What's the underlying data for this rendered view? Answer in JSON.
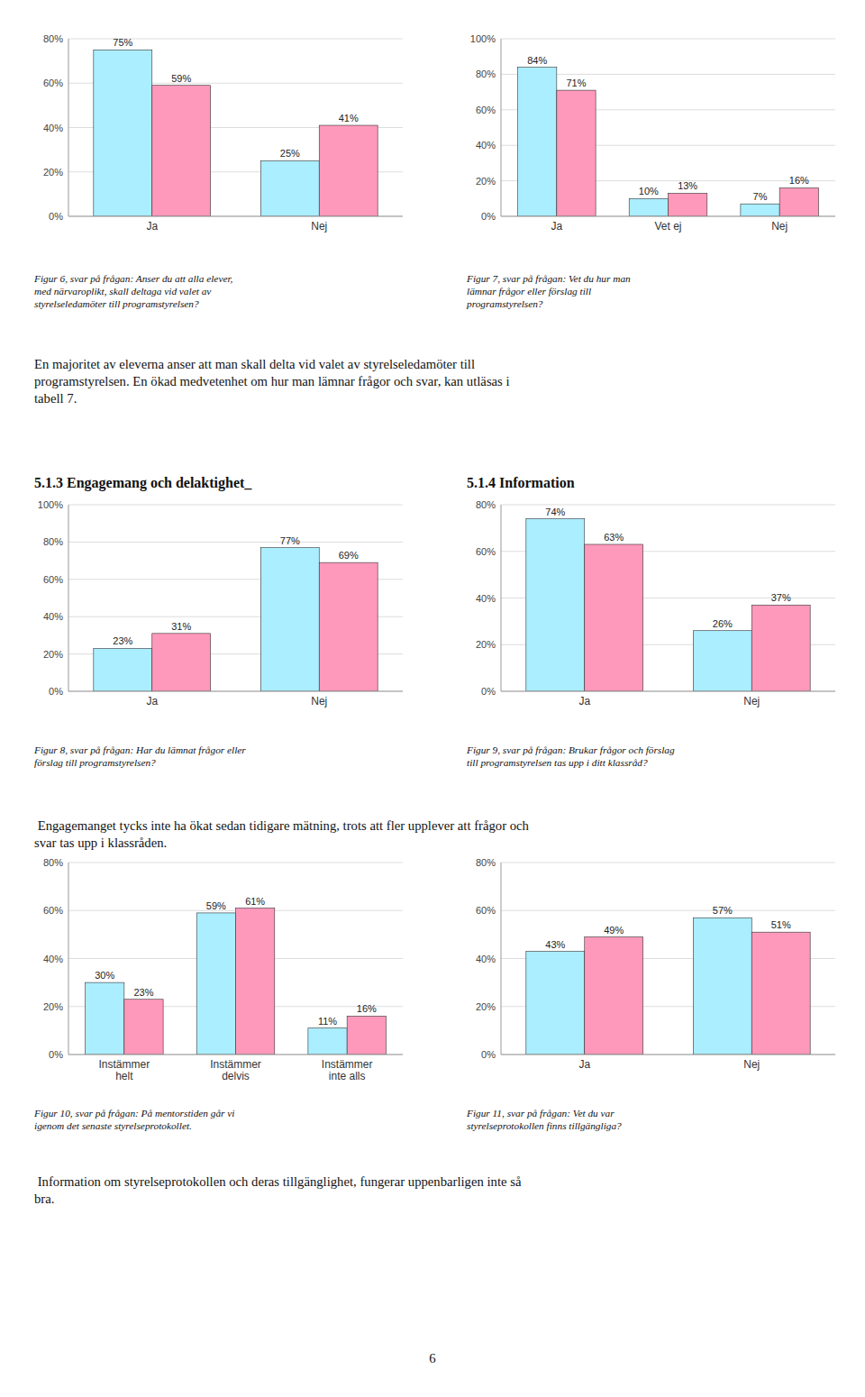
{
  "chart_data": [
    {
      "type": "bar",
      "categories": [
        "Ja",
        "Nej"
      ],
      "series": [
        {
          "color": "#aaeeff",
          "values": [
            75,
            25
          ],
          "value_labels": [
            "75%",
            "25%"
          ]
        },
        {
          "color": "#ff99bb",
          "values": [
            59,
            41
          ],
          "value_labels": [
            "59%",
            "41%"
          ]
        }
      ],
      "ylim": [
        0,
        80
      ],
      "yticks": [
        {
          "value": 0,
          "label": "0%"
        },
        {
          "value": 20,
          "label": "20%"
        },
        {
          "value": 40,
          "label": "40%"
        },
        {
          "value": 60,
          "label": "60%"
        },
        {
          "value": 80,
          "label": "80%"
        }
      ],
      "grid": true,
      "data_labels": true,
      "caption": "Figur 6, svar på frågan: Anser du att alla elever,\nmed närvaroplikt, skall deltaga vid valet av\nstyrelseledamöter till programstyrelsen?"
    },
    {
      "type": "bar",
      "categories": [
        "Ja",
        "Vet ej",
        "Nej"
      ],
      "series": [
        {
          "color": "#aaeeff",
          "values": [
            84,
            10,
            7
          ],
          "value_labels": [
            "84%",
            "10%",
            "7%"
          ]
        },
        {
          "color": "#ff99bb",
          "values": [
            71,
            13,
            16
          ],
          "value_labels": [
            "71%",
            "13%",
            "16%"
          ]
        }
      ],
      "ylim": [
        0,
        100
      ],
      "yticks": [
        {
          "value": 0,
          "label": "0%"
        },
        {
          "value": 20,
          "label": "20%"
        },
        {
          "value": 40,
          "label": "40%"
        },
        {
          "value": 60,
          "label": "60%"
        },
        {
          "value": 80,
          "label": "80%"
        },
        {
          "value": 100,
          "label": "100%"
        }
      ],
      "grid": true,
      "data_labels": true,
      "caption": "Figur 7, svar på frågan: Vet du hur man\nlämnar frågor eller förslag till\nprogramstyrelsen?"
    },
    {
      "type": "bar",
      "categories": [
        "Ja",
        "Nej"
      ],
      "series": [
        {
          "color": "#aaeeff",
          "values": [
            23,
            77
          ],
          "value_labels": [
            "23%",
            "77%"
          ]
        },
        {
          "color": "#ff99bb",
          "values": [
            31,
            69
          ],
          "value_labels": [
            "31%",
            "69%"
          ]
        }
      ],
      "ylim": [
        0,
        100
      ],
      "yticks": [
        {
          "value": 0,
          "label": "0%"
        },
        {
          "value": 20,
          "label": "20%"
        },
        {
          "value": 40,
          "label": "40%"
        },
        {
          "value": 60,
          "label": "60%"
        },
        {
          "value": 80,
          "label": "80%"
        },
        {
          "value": 100,
          "label": "100%"
        }
      ],
      "grid": true,
      "data_labels": true,
      "caption": "Figur 8, svar på frågan: Har du lämnat frågor eller\nförslag till programstyrelsen?"
    },
    {
      "type": "bar",
      "categories": [
        "Ja",
        "Nej"
      ],
      "series": [
        {
          "color": "#aaeeff",
          "values": [
            74,
            26
          ],
          "value_labels": [
            "74%",
            "26%"
          ]
        },
        {
          "color": "#ff99bb",
          "values": [
            63,
            37
          ],
          "value_labels": [
            "63%",
            "37%"
          ]
        }
      ],
      "ylim": [
        0,
        80
      ],
      "yticks": [
        {
          "value": 0,
          "label": "0%"
        },
        {
          "value": 20,
          "label": "20%"
        },
        {
          "value": 40,
          "label": "40%"
        },
        {
          "value": 60,
          "label": "60%"
        },
        {
          "value": 80,
          "label": "80%"
        }
      ],
      "grid": true,
      "data_labels": true,
      "caption": "Figur 9, svar på frågan: Brukar frågor och förslag\ntill programstyrelsen tas upp i ditt klassråd?"
    },
    {
      "type": "bar",
      "categories": [
        "Instämmer\nhelt",
        "Instämmer\ndelvis",
        "Instämmer\ninte alls"
      ],
      "series": [
        {
          "color": "#aaeeff",
          "values": [
            30,
            59,
            11
          ],
          "value_labels": [
            "30%",
            "59%",
            "11%"
          ]
        },
        {
          "color": "#ff99bb",
          "values": [
            23,
            61,
            16
          ],
          "value_labels": [
            "23%",
            "61%",
            "16%"
          ]
        }
      ],
      "ylim": [
        0,
        80
      ],
      "yticks": [
        {
          "value": 0,
          "label": "0%"
        },
        {
          "value": 20,
          "label": "20%"
        },
        {
          "value": 40,
          "label": "40%"
        },
        {
          "value": 60,
          "label": "60%"
        },
        {
          "value": 80,
          "label": "80%"
        }
      ],
      "grid": true,
      "data_labels": true,
      "caption": "Figur 10, svar på frågan: På mentorstiden går vi\nigenom det senaste styrelseprotokollet."
    },
    {
      "type": "bar",
      "categories": [
        "Ja",
        "Nej"
      ],
      "series": [
        {
          "color": "#aaeeff",
          "values": [
            43,
            57
          ],
          "value_labels": [
            "43%",
            "57%"
          ]
        },
        {
          "color": "#ff99bb",
          "values": [
            49,
            51
          ],
          "value_labels": [
            "49%",
            "51%"
          ]
        }
      ],
      "ylim": [
        0,
        80
      ],
      "yticks": [
        {
          "value": 0,
          "label": "0%"
        },
        {
          "value": 20,
          "label": "20%"
        },
        {
          "value": 40,
          "label": "40%"
        },
        {
          "value": 60,
          "label": "60%"
        },
        {
          "value": 80,
          "label": "80%"
        }
      ],
      "grid": true,
      "data_labels": true,
      "caption": "Figur 11, svar på frågan: Vet du var\nstyrelseprotokollen finns tillgängliga?"
    }
  ],
  "text_blocks": [
    "En majoritet av eleverna anser att man skall delta vid valet av styrelseledamöter till\nprogramstyrelsen. En ökad medvetenhet om hur man lämnar frågor och svar, kan utläsas i\ntabell 7.",
    " Engagemanget tycks inte ha ökat sedan tidigare mätning, trots att fler upplever att frågor och\nsvar tas upp i klassråden.",
    " Information om styrelseprotokollen och deras tillgänglighet, fungerar uppenbarligen inte så\nbra."
  ],
  "section_titles": [
    "5.1.3 Engagemang och delaktighet_",
    "5.1.4 Information"
  ],
  "page_number": "6"
}
